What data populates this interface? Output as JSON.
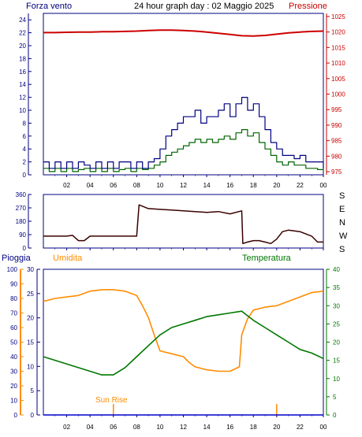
{
  "header": {
    "left_label": "Forza vento",
    "title": "24 hour graph day : 02 Maggio 2025",
    "right_label": "Pressione"
  },
  "x_ticks": [
    "02",
    "04",
    "06",
    "08",
    "10",
    "12",
    "14",
    "16",
    "18",
    "20",
    "22",
    "00"
  ],
  "colors": {
    "wind_avg": "#006400",
    "wind_gust": "#000080",
    "pressure": "#cc0000",
    "direction": "#3a0000",
    "rain": "#0000cc",
    "humidity": "#ff8c00",
    "temperature": "#007700",
    "axis_blue": "#000080",
    "axis_red": "#cc0000",
    "axis_orange": "#ff8c00",
    "axis_green": "#007700",
    "sun": "#ff8c00"
  },
  "chart_data": [
    {
      "type": "line",
      "name": "wind-pressure",
      "x_range": [
        0,
        24
      ],
      "y_left_ticks": [
        0,
        2,
        4,
        6,
        8,
        10,
        12,
        14,
        16,
        18,
        20,
        22,
        24
      ],
      "y_left_range": [
        0,
        25
      ],
      "y_right_ticks": [
        975,
        980,
        985,
        990,
        995,
        1000,
        1005,
        1010,
        1015,
        1020,
        1025
      ],
      "y_right_range": [
        974,
        1026
      ],
      "series": [
        {
          "key": "wind_avg",
          "axis": "left",
          "x": [
            0,
            0.5,
            1,
            1.5,
            2,
            2.5,
            3,
            3.5,
            4,
            4.5,
            5,
            5.5,
            6,
            6.5,
            7,
            7.5,
            8,
            8.5,
            9,
            9.5,
            10,
            10.5,
            11,
            11.5,
            12,
            12.5,
            13,
            13.5,
            14,
            14.5,
            15,
            15.5,
            16,
            16.5,
            17,
            17.5,
            18,
            18.5,
            19,
            19.5,
            20,
            20.5,
            21,
            21.5,
            22,
            22.5,
            23,
            23.5,
            24
          ],
          "y": [
            1,
            0.5,
            1,
            0.5,
            1,
            0.5,
            0.8,
            1,
            0.5,
            1,
            0.5,
            1,
            0.5,
            0.8,
            1,
            0.5,
            1,
            0.8,
            1,
            1.5,
            2,
            3,
            3.5,
            4,
            4.5,
            5,
            5.5,
            5,
            5.5,
            5,
            5.5,
            6,
            5.5,
            6.5,
            7,
            6,
            6.5,
            5,
            4,
            3,
            2,
            1.5,
            2,
            1.5,
            1.5,
            1,
            1,
            0.8,
            0.5
          ]
        },
        {
          "key": "wind_gust",
          "axis": "left",
          "x": [
            0,
            0.5,
            1,
            1.5,
            2,
            2.5,
            3,
            3.5,
            4,
            4.5,
            5,
            5.5,
            6,
            6.5,
            7,
            7.5,
            8,
            8.5,
            9,
            9.5,
            10,
            10.5,
            11,
            11.5,
            12,
            12.5,
            13,
            13.5,
            14,
            14.5,
            15,
            15.5,
            16,
            16.5,
            17,
            17.5,
            18,
            18.5,
            19,
            19.5,
            20,
            20.5,
            21,
            21.5,
            22,
            22.5,
            23,
            23.5,
            24
          ],
          "y": [
            2,
            1,
            2,
            1,
            2,
            1,
            2,
            1.5,
            1,
            2,
            1,
            2,
            1,
            2,
            2,
            1,
            2,
            1,
            2,
            2.5,
            4,
            6,
            7,
            8,
            9,
            9,
            10,
            8,
            9,
            9,
            10,
            11,
            9,
            11,
            12,
            10,
            11,
            9,
            7,
            5,
            4,
            3,
            3,
            2.5,
            3,
            2,
            2,
            2,
            1
          ]
        },
        {
          "key": "pressure",
          "axis": "right",
          "x": [
            0,
            1,
            2,
            3,
            4,
            5,
            6,
            7,
            8,
            9,
            10,
            11,
            12,
            13,
            14,
            15,
            16,
            17,
            18,
            19,
            20,
            21,
            22,
            23,
            24
          ],
          "y": [
            1019.8,
            1019.8,
            1019.9,
            1020,
            1020,
            1020.1,
            1020.1,
            1020.2,
            1020.3,
            1020.5,
            1020.6,
            1020.6,
            1020.5,
            1020.3,
            1020,
            1019.6,
            1019.2,
            1018.8,
            1018.7,
            1018.9,
            1019.3,
            1019.7,
            1020,
            1020.2,
            1020.3
          ]
        }
      ]
    },
    {
      "type": "line",
      "name": "wind-direction",
      "x_range": [
        0,
        24
      ],
      "y_ticks": [
        0,
        90,
        180,
        270,
        360
      ],
      "y_range": [
        0,
        360
      ],
      "right_labels": [
        "S",
        "E",
        "N",
        "W",
        "S"
      ],
      "series": [
        {
          "key": "direction",
          "x": [
            0,
            1,
            2,
            2.5,
            3,
            3.5,
            4,
            5,
            6,
            7,
            8,
            8.2,
            9,
            10,
            11,
            12,
            13,
            14,
            15,
            16,
            17,
            17.1,
            17.5,
            18,
            18.5,
            19,
            19.5,
            20,
            20.5,
            21,
            22,
            23,
            23.5,
            24
          ],
          "y": [
            80,
            80,
            80,
            85,
            50,
            50,
            80,
            80,
            80,
            80,
            80,
            290,
            265,
            260,
            255,
            250,
            245,
            240,
            245,
            230,
            250,
            30,
            40,
            50,
            50,
            40,
            30,
            60,
            110,
            120,
            110,
            80,
            40,
            40
          ]
        }
      ]
    },
    {
      "type": "line",
      "name": "rain-humidity-temperature",
      "x_range": [
        0,
        24
      ],
      "rain_ticks": [
        0,
        5,
        10,
        15,
        20,
        25,
        30
      ],
      "rain_range": [
        0,
        30
      ],
      "humidity_ticks": [
        0,
        10,
        20,
        30,
        40,
        50,
        60,
        70,
        80,
        90,
        100
      ],
      "humidity_range": [
        0,
        100
      ],
      "temp_ticks": [
        0,
        5,
        10,
        15,
        20,
        25,
        30,
        35,
        40
      ],
      "temp_range": [
        0,
        40
      ],
      "labels": {
        "rain": "Pioggia",
        "humidity": "Umidita",
        "temperature": "Temperatura",
        "sunrise": "Sun Rise"
      },
      "sunrise_x": 6,
      "sunset_x": 20,
      "series": [
        {
          "key": "humidity",
          "axis": "humidity",
          "x": [
            0,
            1,
            2,
            3,
            4,
            5,
            6,
            7,
            8,
            8.5,
            9,
            9.5,
            10,
            11,
            12,
            12.5,
            13,
            14,
            15,
            16,
            16.8,
            17,
            17.5,
            18,
            19,
            20,
            21,
            22,
            23,
            24
          ],
          "y": [
            78,
            80,
            81,
            82,
            85,
            86,
            86,
            85,
            82,
            75,
            67,
            55,
            44,
            42,
            40,
            36,
            33,
            31,
            30,
            30,
            33,
            55,
            66,
            72,
            74,
            75,
            78,
            81,
            84,
            85
          ]
        },
        {
          "key": "temperature",
          "axis": "temp",
          "x": [
            0,
            1,
            2,
            3,
            4,
            5,
            6,
            7,
            8,
            9,
            10,
            11,
            12,
            13,
            14,
            15,
            16,
            17,
            18,
            19,
            20,
            21,
            22,
            23,
            24
          ],
          "y": [
            16,
            15,
            14,
            13,
            12,
            11,
            11,
            13,
            16,
            19,
            22,
            24,
            25,
            26,
            27,
            27.5,
            28,
            28.5,
            26,
            24,
            22,
            20,
            18,
            17,
            15.5
          ]
        },
        {
          "key": "rain",
          "axis": "rain",
          "x": [
            0,
            24
          ],
          "y": [
            0,
            0
          ]
        }
      ]
    }
  ]
}
